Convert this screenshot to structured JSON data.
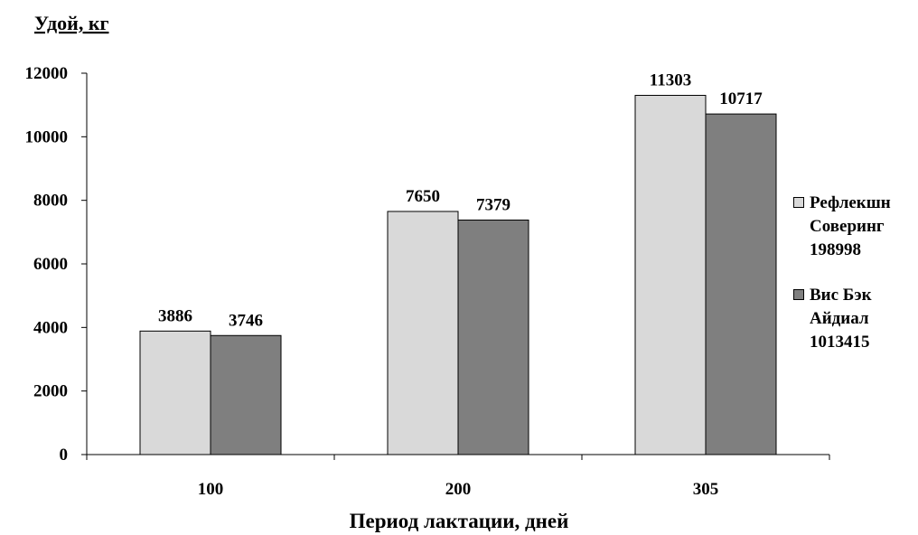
{
  "chart_data": {
    "type": "bar",
    "title": "",
    "ylabel": "Удой, кг",
    "xlabel": "Период лактации, дней",
    "categories": [
      "100",
      "200",
      "305"
    ],
    "ylim": [
      0,
      12000
    ],
    "yticks": [
      0,
      2000,
      4000,
      6000,
      8000,
      10000,
      12000
    ],
    "grid": false,
    "legend_position": "right",
    "series": [
      {
        "name": "Рефлекшн Соверинг 198998",
        "name_lines": [
          "Рефлекшн",
          "Соверинг",
          "198998"
        ],
        "color": "#d9d9d9",
        "values": [
          3886,
          7650,
          11303
        ]
      },
      {
        "name": "Вис Бэк Айдиал 1013415",
        "name_lines": [
          "Вис Бэк",
          "Айдиал",
          "1013415"
        ],
        "color": "#7f7f7f",
        "values": [
          3746,
          7379,
          10717
        ]
      }
    ]
  }
}
